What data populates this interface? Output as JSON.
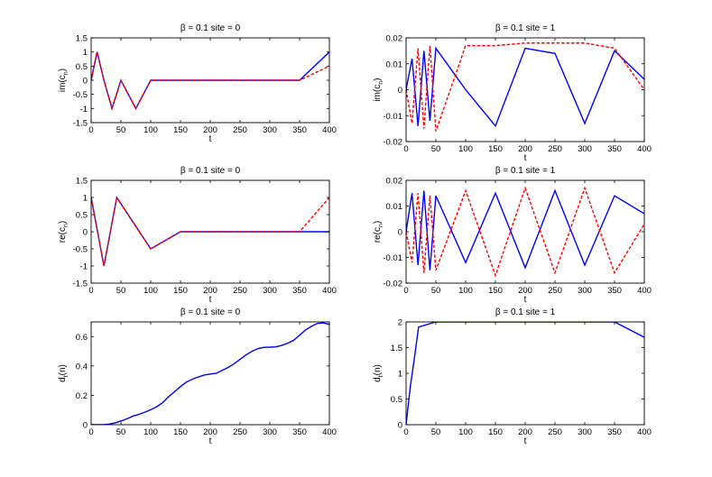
{
  "colors": {
    "blue": "#0000ff",
    "red": "#ff0000",
    "axis": "#000000"
  },
  "chart_data": [
    {
      "type": "line",
      "title": "β = 0.1 site = 0",
      "xlabel": "t",
      "ylabel": "im(c",
      "ylabel_sub": "n",
      "ylabel_end": ")",
      "xlim": [
        0,
        400
      ],
      "ylim": [
        -1.5,
        1.5
      ],
      "xticks": [
        0,
        50,
        100,
        150,
        200,
        250,
        300,
        350,
        400
      ],
      "yticks": [
        -1.5,
        -1,
        -0.5,
        0,
        0.5,
        1,
        1.5
      ],
      "ytick_labels": [
        "-1.5",
        "-1",
        "-0.5",
        "0",
        "0.5",
        "1",
        "1.5"
      ],
      "grid": false,
      "series": [
        {
          "color": "#0000ff",
          "dash": "solid",
          "x": [
            0,
            10,
            21.5,
            35,
            50,
            75,
            100,
            150,
            200,
            250,
            300,
            350,
            400
          ],
          "y": [
            0.0,
            1.0,
            0.0,
            -1.0,
            0.0,
            -1.0,
            0.0,
            0.0,
            0.0,
            0.0,
            0.0,
            0.0,
            1.0
          ]
        },
        {
          "color": "#ff0000",
          "dash": "dashed",
          "x": [
            0,
            10,
            21.5,
            35,
            50,
            75,
            100,
            150,
            200,
            250,
            300,
            350,
            400
          ],
          "y": [
            0.0,
            1.0,
            0.0,
            -1.0,
            0.0,
            -1.0,
            0.0,
            0.0,
            0.0,
            0.0,
            0.0,
            0.0,
            0.5
          ]
        }
      ]
    },
    {
      "type": "line",
      "title": "β = 0.1 site = 1",
      "xlabel": "t",
      "ylabel": "im(c",
      "ylabel_sub": "n",
      "ylabel_end": ")",
      "xlim": [
        0,
        400
      ],
      "ylim": [
        -0.02,
        0.02
      ],
      "xticks": [
        0,
        50,
        100,
        150,
        200,
        250,
        300,
        350,
        400
      ],
      "yticks": [
        -0.02,
        -0.01,
        0,
        0.01,
        0.02
      ],
      "ytick_labels": [
        "-0.02",
        "-0.01",
        "0",
        "0.01",
        "0.02"
      ],
      "grid": false,
      "series": [
        {
          "color": "#0000ff",
          "dash": "solid",
          "x": [
            0,
            10,
            20,
            30,
            40,
            50,
            100,
            150,
            200,
            250,
            300,
            350,
            400
          ],
          "y": [
            0.0,
            0.012,
            -0.014,
            0.015,
            -0.012,
            0.016,
            0.0,
            -0.014,
            0.016,
            0.014,
            -0.013,
            0.015,
            0.004
          ]
        },
        {
          "color": "#ff0000",
          "dash": "dashed",
          "x": [
            0,
            10,
            20,
            30,
            40,
            50,
            100,
            150,
            200,
            250,
            300,
            350,
            400
          ],
          "y": [
            0.0,
            -0.013,
            0.016,
            -0.015,
            0.017,
            -0.016,
            0.017,
            0.017,
            0.018,
            0.018,
            0.018,
            0.016,
            0.0
          ]
        }
      ]
    },
    {
      "type": "line",
      "title": "β = 0.1 site = 0",
      "xlabel": "t",
      "ylabel": "re(c",
      "ylabel_sub": "n",
      "ylabel_end": ")",
      "xlim": [
        0,
        400
      ],
      "ylim": [
        -1.5,
        1.5
      ],
      "xticks": [
        0,
        50,
        100,
        150,
        200,
        250,
        300,
        350,
        400
      ],
      "yticks": [
        -1.5,
        -1,
        -0.5,
        0,
        0.5,
        1,
        1.5
      ],
      "ytick_labels": [
        "-1.5",
        "-1",
        "-0.5",
        "0",
        "0.5",
        "1",
        "1.5"
      ],
      "grid": false,
      "series": [
        {
          "color": "#0000ff",
          "dash": "solid",
          "x": [
            0,
            10.75,
            21.5,
            32.25,
            43,
            100,
            150,
            200,
            250,
            300,
            350,
            400
          ],
          "y": [
            1.0,
            0.0,
            -1.0,
            0.0,
            1.0,
            -0.5,
            0.0,
            0.0,
            0.0,
            0.0,
            0.0,
            0.0
          ]
        },
        {
          "color": "#ff0000",
          "dash": "dashed",
          "x": [
            0,
            10.75,
            21.5,
            32.25,
            43,
            100,
            150,
            200,
            250,
            300,
            350,
            400
          ],
          "y": [
            1.0,
            0.0,
            -1.0,
            0.0,
            1.0,
            -0.5,
            0.0,
            0.0,
            0.0,
            0.0,
            0.0,
            1.0
          ]
        }
      ]
    },
    {
      "type": "line",
      "title": "β = 0.1 site = 1",
      "xlabel": "t",
      "ylabel": "re(c",
      "ylabel_sub": "n",
      "ylabel_end": ")",
      "xlim": [
        0,
        400
      ],
      "ylim": [
        -0.02,
        0.02
      ],
      "xticks": [
        0,
        50,
        100,
        150,
        200,
        250,
        300,
        350,
        400
      ],
      "yticks": [
        -0.02,
        -0.01,
        0,
        0.01,
        0.02
      ],
      "ytick_labels": [
        "-0.02",
        "-0.01",
        "0",
        "0.01",
        "0.02"
      ],
      "grid": false,
      "series": [
        {
          "color": "#0000ff",
          "dash": "solid",
          "x": [
            0,
            10,
            20,
            30,
            40,
            50,
            100,
            150,
            200,
            250,
            300,
            350,
            400
          ],
          "y": [
            0.0,
            0.015,
            -0.013,
            0.016,
            -0.015,
            0.014,
            -0.012,
            0.015,
            -0.014,
            0.016,
            -0.013,
            0.014,
            0.007
          ]
        },
        {
          "color": "#ff0000",
          "dash": "dashed",
          "x": [
            0,
            10,
            20,
            30,
            40,
            50,
            100,
            150,
            200,
            250,
            300,
            350,
            400
          ],
          "y": [
            0.0,
            -0.012,
            0.015,
            -0.016,
            0.014,
            -0.015,
            0.016,
            -0.017,
            0.017,
            -0.016,
            0.017,
            -0.016,
            0.003
          ]
        }
      ]
    },
    {
      "type": "line",
      "title": "β = 0.1 site = 0",
      "xlabel": "t",
      "ylabel": "d",
      "ylabel_sub": "t",
      "ylabel_end": "(n)",
      "xlim": [
        0,
        400
      ],
      "ylim": [
        0,
        0.7
      ],
      "xticks": [
        0,
        50,
        100,
        150,
        200,
        250,
        300,
        350,
        400
      ],
      "yticks": [
        0,
        0.2,
        0.4,
        0.6
      ],
      "ytick_labels": [
        "0",
        "0.2",
        "0.4",
        "0.6"
      ],
      "grid": false,
      "series": [
        {
          "color": "#0000ff",
          "dash": "solid",
          "x": [
            0,
            20,
            30,
            40,
            50,
            60,
            70,
            80,
            90,
            100,
            110,
            120,
            130,
            140,
            150,
            160,
            170,
            180,
            190,
            200,
            210,
            220,
            230,
            240,
            250,
            260,
            270,
            280,
            290,
            300,
            310,
            320,
            330,
            340,
            350,
            360,
            370,
            380,
            390,
            400
          ],
          "y": [
            0.0,
            0.0,
            0.004,
            0.012,
            0.025,
            0.04,
            0.058,
            0.07,
            0.085,
            0.102,
            0.122,
            0.15,
            0.19,
            0.225,
            0.26,
            0.29,
            0.31,
            0.325,
            0.338,
            0.345,
            0.35,
            0.37,
            0.39,
            0.415,
            0.445,
            0.475,
            0.5,
            0.518,
            0.527,
            0.528,
            0.53,
            0.54,
            0.555,
            0.575,
            0.61,
            0.645,
            0.67,
            0.69,
            0.693,
            0.683
          ]
        }
      ]
    },
    {
      "type": "line",
      "title": "β = 0.1 site = 1",
      "xlabel": "t",
      "ylabel": "d",
      "ylabel_sub": "t",
      "ylabel_end": "(n)",
      "xlim": [
        0,
        400
      ],
      "ylim": [
        0,
        2
      ],
      "xticks": [
        0,
        50,
        100,
        150,
        200,
        250,
        300,
        350,
        400
      ],
      "yticks": [
        0,
        0.5,
        1,
        1.5,
        2
      ],
      "ytick_labels": [
        "0",
        "0.5",
        "1",
        "1.5",
        "2"
      ],
      "grid": false,
      "series": [
        {
          "color": "#0000ff",
          "dash": "solid",
          "x": [
            0,
            7,
            14,
            21,
            50,
            100,
            150,
            200,
            250,
            300,
            350,
            400
          ],
          "y": [
            0.0,
            0.73,
            1.3,
            1.9,
            2.0,
            2.0,
            2.0,
            2.0,
            2.0,
            2.0,
            2.0,
            1.7
          ]
        }
      ]
    }
  ]
}
